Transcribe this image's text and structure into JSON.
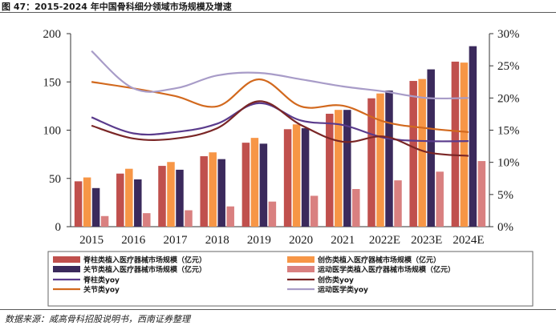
{
  "header": {
    "title": "图 47：2015-2024 年中国骨科细分领域市场规模及增速"
  },
  "footer": {
    "source": "数据来源：威高骨科招股说明书，西南证券整理"
  },
  "colors": {
    "spine_bar": "#c0504d",
    "trauma_bar": "#f79646",
    "joint_bar": "#3b2a5c",
    "sports_bar": "#d98080",
    "spine_line": "#5a3b8c",
    "trauma_line": "#7a2626",
    "joint_line": "#d2691e",
    "sports_line": "#a89cc8"
  },
  "chart_data": {
    "type": "bar",
    "title": "",
    "xlabel": "",
    "ylabel": "",
    "categories": [
      "2015",
      "2016",
      "2017",
      "2018",
      "2019",
      "2020",
      "2021",
      "2022E",
      "2023E",
      "2024E"
    ],
    "ylim": [
      0,
      200
    ],
    "yticks": [
      "0",
      "50",
      "100",
      "150",
      "200"
    ],
    "y2lim": [
      0,
      30
    ],
    "y2ticks": [
      "0%",
      "5%",
      "10%",
      "15%",
      "20%",
      "25%",
      "30%"
    ],
    "series": [
      {
        "name": "脊柱类植入医疗器械市场规模（亿元）",
        "kind": "bar",
        "axis": "left",
        "color_key": "spine_bar",
        "values": [
          47,
          55,
          63,
          73,
          87,
          101,
          117,
          133,
          151,
          171
        ]
      },
      {
        "name": "创伤类植入医疗器械市场规模（亿元）",
        "kind": "bar",
        "axis": "left",
        "color_key": "trauma_bar",
        "values": [
          51,
          60,
          67,
          77,
          92,
          106,
          121,
          138,
          153,
          170
        ]
      },
      {
        "name": "关节类植入医疗器械市场规模（亿元）",
        "kind": "bar",
        "axis": "left",
        "color_key": "joint_bar",
        "values": [
          40,
          49,
          59,
          70,
          86,
          102,
          121,
          141,
          163,
          187
        ]
      },
      {
        "name": "运动医学类植入医疗器械市场规模（亿元）",
        "kind": "bar",
        "axis": "left",
        "color_key": "sports_bar",
        "values": [
          11,
          14,
          17,
          21,
          26,
          32,
          39,
          48,
          57,
          68
        ]
      },
      {
        "name": "脊柱类yoy",
        "kind": "line",
        "axis": "right",
        "color_key": "spine_line",
        "values": [
          17.0,
          14.5,
          14.7,
          16.0,
          19.2,
          16.5,
          15.8,
          13.8,
          13.3,
          13.3
        ]
      },
      {
        "name": "创伤类yoy",
        "kind": "line",
        "axis": "right",
        "color_key": "trauma_line",
        "values": [
          15.7,
          13.7,
          13.7,
          15.3,
          19.5,
          15.8,
          13.2,
          14.0,
          11.6,
          11.0
        ]
      },
      {
        "name": "关节类yoy",
        "kind": "line",
        "axis": "right",
        "color_key": "joint_line",
        "values": [
          22.5,
          21.5,
          20.3,
          18.7,
          22.9,
          18.7,
          18.8,
          16.3,
          15.3,
          14.7
        ]
      },
      {
        "name": "运动医学类yoy",
        "kind": "line",
        "axis": "right",
        "color_key": "sports_line",
        "values": [
          27.3,
          21.5,
          21.5,
          23.5,
          23.9,
          22.9,
          21.8,
          21.0,
          20.0,
          20.0
        ]
      }
    ]
  }
}
